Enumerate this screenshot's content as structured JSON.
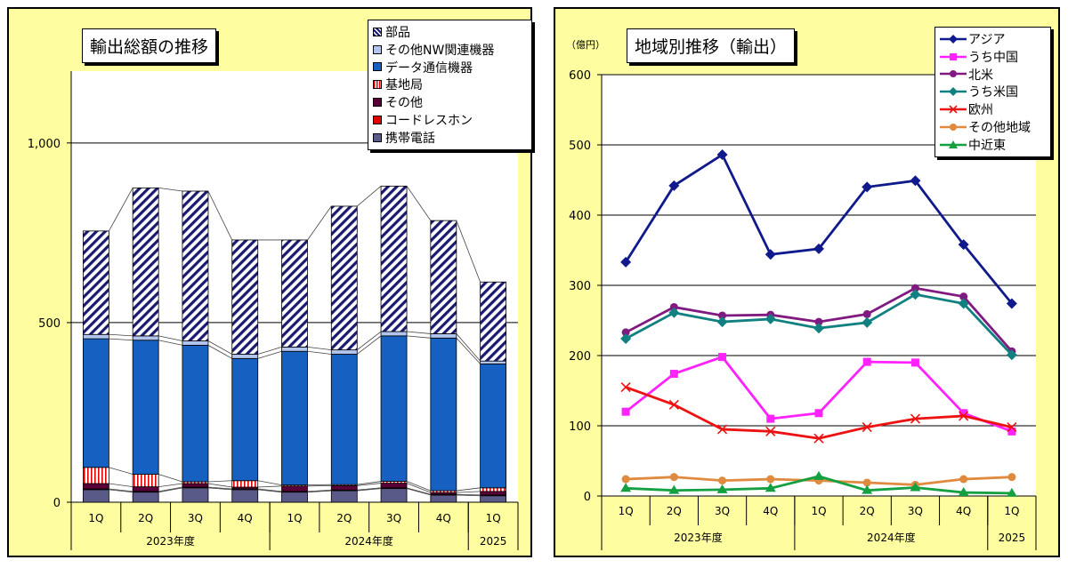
{
  "chart_data": [
    {
      "type": "stacked-bar",
      "title": "輸出総額の推移",
      "categories": [
        "1Q",
        "2Q",
        "3Q",
        "4Q",
        "1Q",
        "2Q",
        "3Q",
        "4Q",
        "1Q"
      ],
      "groups": [
        {
          "label": "2023年度",
          "span": 4
        },
        {
          "label": "2024年度",
          "span": 4
        },
        {
          "label": "2025",
          "span": 1
        }
      ],
      "yticks": [
        {
          "value": 0,
          "label": "0"
        },
        {
          "value": 500,
          "label": "500"
        },
        {
          "value": 1000,
          "label": "1,000"
        }
      ],
      "ylim": [
        0,
        1200
      ],
      "grid": "horizontal",
      "legend_position": "top-right",
      "stack_order": [
        "携帯電話",
        "コードレスホン",
        "その他",
        "基地局",
        "データ通信機器",
        "その他NW関連機器",
        "部品"
      ],
      "legend_order": [
        "部品",
        "その他NW関連機器",
        "データ通信機器",
        "基地局",
        "その他",
        "コードレスホン",
        "携帯電話"
      ],
      "series": [
        {
          "name": "携帯電話",
          "color": "#5a5a88",
          "pattern": "solid",
          "values": [
            35,
            28,
            40,
            35,
            28,
            32,
            38,
            20,
            18
          ]
        },
        {
          "name": "コードレスホン",
          "color": "#e00000",
          "pattern": "solid",
          "values": [
            2,
            2,
            2,
            2,
            2,
            2,
            2,
            2,
            2
          ]
        },
        {
          "name": "その他",
          "color": "#5a0038",
          "pattern": "solid",
          "values": [
            15,
            13,
            10,
            5,
            15,
            12,
            13,
            5,
            10
          ]
        },
        {
          "name": "基地局",
          "color": "#e00000",
          "pattern": "vertical-stripes",
          "values": [
            45,
            35,
            5,
            18,
            3,
            3,
            5,
            5,
            10
          ]
        },
        {
          "name": "データ通信機器",
          "color": "#1560c0",
          "pattern": "solid",
          "values": [
            358,
            373,
            380,
            340,
            372,
            363,
            405,
            425,
            345
          ]
        },
        {
          "name": "その他NW関連機器",
          "color": "#b0c4ee",
          "pattern": "solid",
          "values": [
            12,
            12,
            12,
            12,
            12,
            12,
            12,
            12,
            8
          ]
        },
        {
          "name": "部品",
          "color": "#1a1a70",
          "pattern": "diagonal-stripes",
          "values": [
            288,
            412,
            417,
            318,
            298,
            400,
            405,
            315,
            220
          ]
        }
      ]
    },
    {
      "type": "line",
      "title": "地域別推移（輸出）",
      "unit_label": "（億円）",
      "categories": [
        "1Q",
        "2Q",
        "3Q",
        "4Q",
        "1Q",
        "2Q",
        "3Q",
        "4Q",
        "1Q"
      ],
      "groups": [
        {
          "label": "2023年度",
          "span": 4
        },
        {
          "label": "2024年度",
          "span": 4
        },
        {
          "label": "2025",
          "span": 1
        }
      ],
      "yticks": [
        0,
        100,
        200,
        300,
        400,
        500,
        600
      ],
      "ylim": [
        0,
        600
      ],
      "grid": "horizontal",
      "legend_position": "top-right",
      "series": [
        {
          "name": "アジア",
          "color": "#101a8c",
          "marker": "diamond",
          "values": [
            333,
            442,
            486,
            344,
            352,
            440,
            449,
            358,
            274
          ]
        },
        {
          "name": "うち中国",
          "color": "#ff22ff",
          "marker": "square",
          "values": [
            120,
            174,
            198,
            110,
            118,
            191,
            190,
            118,
            92
          ]
        },
        {
          "name": "北米",
          "color": "#801a80",
          "marker": "circle",
          "values": [
            233,
            269,
            257,
            258,
            248,
            259,
            296,
            284,
            206
          ]
        },
        {
          "name": "うち米国",
          "color": "#108080",
          "marker": "diamond",
          "values": [
            224,
            261,
            248,
            252,
            239,
            247,
            287,
            274,
            201
          ]
        },
        {
          "name": "欧州",
          "color": "#ee1111",
          "marker": "x",
          "values": [
            155,
            130,
            95,
            92,
            82,
            98,
            110,
            114,
            98
          ]
        },
        {
          "name": "その他地域",
          "color": "#e08a40",
          "marker": "circle",
          "values": [
            24,
            27,
            22,
            24,
            22,
            19,
            16,
            24,
            27
          ]
        },
        {
          "name": "中近東",
          "color": "#14a040",
          "marker": "triangle",
          "values": [
            11,
            8,
            9,
            11,
            28,
            8,
            12,
            5,
            4
          ]
        }
      ]
    }
  ]
}
